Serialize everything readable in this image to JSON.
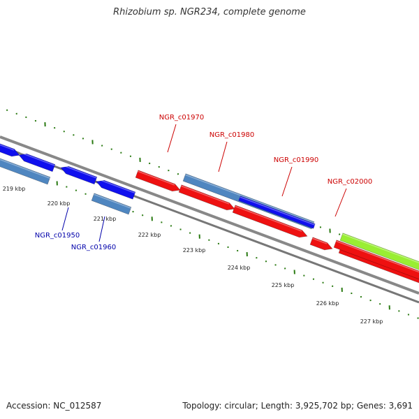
{
  "title": "Rhizobium sp. NGR234, complete genome",
  "accession": "Accession: NC_012587",
  "summary": "Topology: circular; Length: 3,925,702 bp; Genes: 3,691",
  "colors": {
    "backbone": "#888888",
    "tick": "#2a7a12",
    "gene_label_forward": "#cc0000",
    "gene_label_reverse": "#0000aa"
  },
  "ruler_labels": [
    "219 kbp",
    "220 kbp",
    "221 kbp",
    "222 kbp",
    "223 kbp",
    "224 kbp",
    "225 kbp",
    "226 kbp",
    "227 kbp"
  ],
  "gene_labels": [
    {
      "id": "NGR_c01950",
      "color": "#0000aa"
    },
    {
      "id": "NGR_c01960",
      "color": "#0000aa"
    },
    {
      "id": "NGR_c01970",
      "color": "#cc0000"
    },
    {
      "id": "NGR_c01980",
      "color": "#cc0000"
    },
    {
      "id": "NGR_c01990",
      "color": "#cc0000"
    },
    {
      "id": "NGR_c02000",
      "color": "#cc0000"
    }
  ],
  "features": [
    {
      "kind": "cds-reverse",
      "color": "#1010ee"
    },
    {
      "kind": "cds-reverse",
      "color": "#1010ee"
    },
    {
      "kind": "cds-reverse",
      "color": "#1010ee"
    },
    {
      "kind": "cds-reverse",
      "color": "#1010ee"
    },
    {
      "kind": "gene-reverse",
      "color": "#4f86c0"
    },
    {
      "kind": "gene-reverse",
      "color": "#4f86c0"
    },
    {
      "kind": "cds-forward",
      "color": "#ee1111"
    },
    {
      "kind": "gene-reverse",
      "color": "#4f86c0"
    },
    {
      "kind": "cds-reverse",
      "color": "#1010ee"
    },
    {
      "kind": "gene-forward",
      "color": "#ee1111"
    },
    {
      "kind": "gene-forward",
      "color": "#ee1111"
    },
    {
      "kind": "gene-forward",
      "color": "#ee1111"
    },
    {
      "kind": "cds-forward",
      "color": "#ee1111"
    },
    {
      "kind": "cds-forward",
      "color": "#99ee33"
    },
    {
      "kind": "gene-forward",
      "color": "#ee1111"
    }
  ]
}
